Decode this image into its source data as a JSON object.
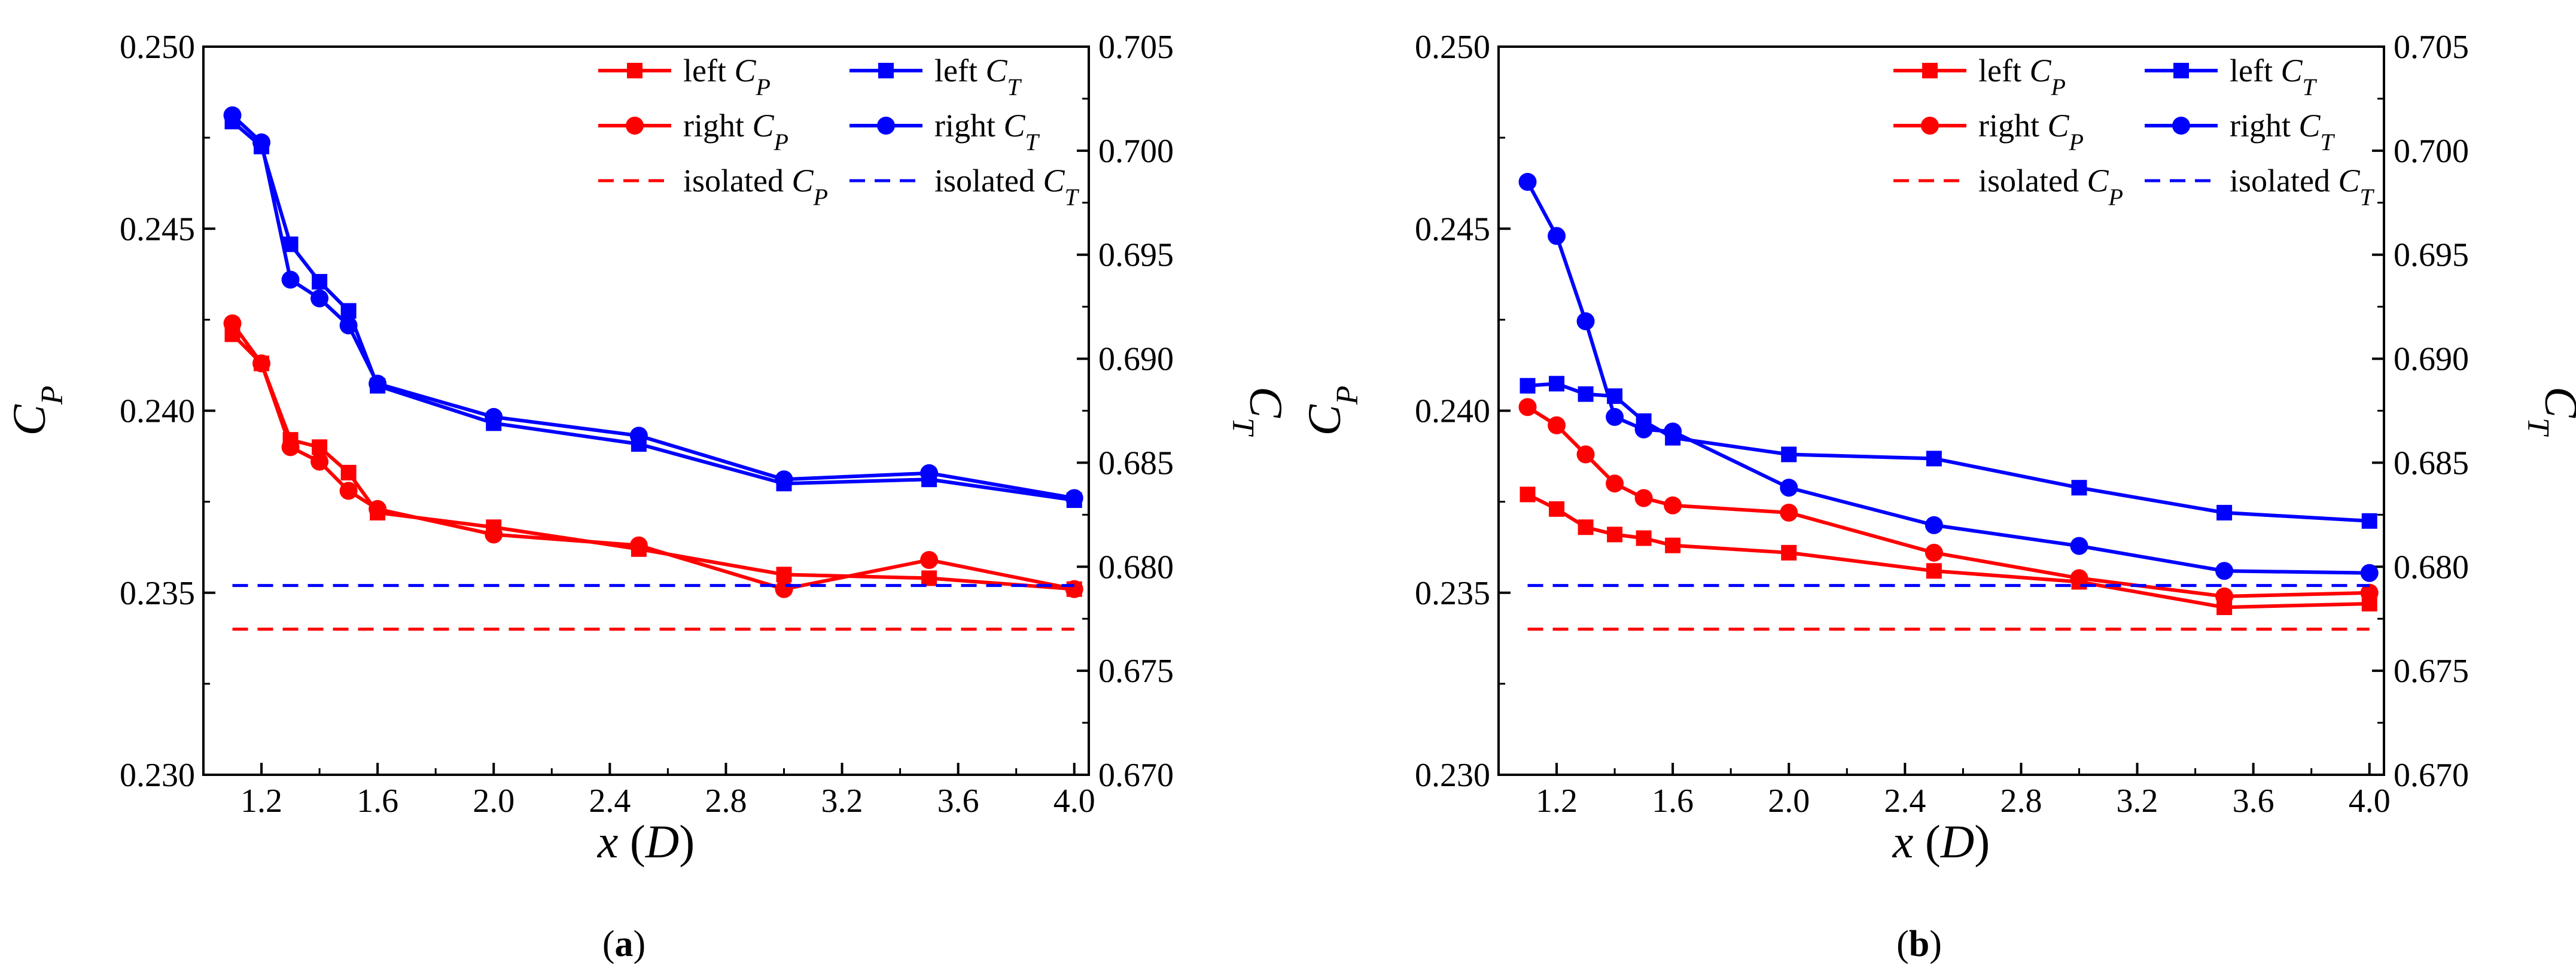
{
  "chart_data": [
    {
      "type": "line",
      "panel_label": "(a)",
      "xlabel": "x (D)",
      "ylabel_left": "C_P",
      "ylabel_right": "C_T",
      "xlim": [
        1.0,
        4.05
      ],
      "ylim_left": [
        0.23,
        0.25
      ],
      "ylim_right": [
        0.67,
        0.705
      ],
      "x_ticks": [
        "1.2",
        "1.6",
        "2.0",
        "2.4",
        "2.8",
        "3.2",
        "3.6",
        "4.0"
      ],
      "y_ticks_left": [
        "0.230",
        "0.235",
        "0.240",
        "0.245",
        "0.250"
      ],
      "y_ticks_right": [
        "0.670",
        "0.675",
        "0.680",
        "0.685",
        "0.690",
        "0.695",
        "0.700",
        "0.705"
      ],
      "x": [
        1.1,
        1.2,
        1.3,
        1.4,
        1.5,
        1.6,
        2.0,
        2.5,
        3.0,
        3.5,
        4.0
      ],
      "series": [
        {
          "name": "left C_P",
          "axis": "left",
          "color": "#ff0000",
          "marker": "square",
          "dashed": false,
          "values": [
            0.2421,
            0.2413,
            0.2392,
            0.239,
            0.2383,
            0.2372,
            0.2368,
            0.2362,
            0.2355,
            0.2354,
            0.2351
          ]
        },
        {
          "name": "right C_P",
          "axis": "left",
          "color": "#ff0000",
          "marker": "circle",
          "dashed": false,
          "values": [
            0.2424,
            0.2413,
            0.239,
            0.2386,
            0.2378,
            0.2373,
            0.2366,
            0.2363,
            0.2351,
            0.2359,
            0.2351
          ]
        },
        {
          "name": "left C_T",
          "axis": "right",
          "color": "#0000ff",
          "marker": "square",
          "dashed": false,
          "values": [
            0.7014,
            0.7002,
            0.6955,
            0.6937,
            0.6923,
            0.6887,
            0.6869,
            0.6859,
            0.684,
            0.6842,
            0.6832
          ]
        },
        {
          "name": "right C_T",
          "axis": "right",
          "color": "#0000ff",
          "marker": "circle",
          "dashed": false,
          "values": [
            0.7017,
            0.7004,
            0.6938,
            0.6929,
            0.6916,
            0.6888,
            0.6872,
            0.6863,
            0.6842,
            0.6845,
            0.6833
          ]
        },
        {
          "name": "isolated C_P",
          "axis": "left",
          "color": "#ff0000",
          "marker": "none",
          "dashed": true,
          "values": [
            0.234,
            0.234,
            0.234,
            0.234,
            0.234,
            0.234,
            0.234,
            0.234,
            0.234,
            0.234,
            0.234
          ]
        },
        {
          "name": "isolated C_T",
          "axis": "right",
          "color": "#0000ff",
          "marker": "none",
          "dashed": true,
          "values": [
            0.6791,
            0.6791,
            0.6791,
            0.6791,
            0.6791,
            0.6791,
            0.6791,
            0.6791,
            0.6791,
            0.6791,
            0.6791
          ]
        }
      ]
    },
    {
      "type": "line",
      "panel_label": "(b)",
      "xlabel": "x (D)",
      "ylabel_left": "C_P",
      "ylabel_right": "C_T",
      "xlim": [
        1.0,
        4.05
      ],
      "ylim_left": [
        0.23,
        0.25
      ],
      "ylim_right": [
        0.67,
        0.705
      ],
      "x_ticks": [
        "1.2",
        "1.6",
        "2.0",
        "2.4",
        "2.8",
        "3.2",
        "3.6",
        "4.0"
      ],
      "y_ticks_left": [
        "0.230",
        "0.235",
        "0.240",
        "0.245",
        "0.250"
      ],
      "y_ticks_right": [
        "0.670",
        "0.675",
        "0.680",
        "0.685",
        "0.690",
        "0.695",
        "0.700",
        "0.705"
      ],
      "x": [
        1.1,
        1.2,
        1.3,
        1.4,
        1.5,
        1.6,
        2.0,
        2.5,
        3.0,
        3.5,
        4.0
      ],
      "series": [
        {
          "name": "left C_P",
          "axis": "left",
          "color": "#ff0000",
          "marker": "square",
          "dashed": false,
          "values": [
            0.2377,
            0.2373,
            0.2368,
            0.2366,
            0.2365,
            0.2363,
            0.2361,
            0.2356,
            0.2353,
            0.2346,
            0.2347
          ]
        },
        {
          "name": "right C_P",
          "axis": "left",
          "color": "#ff0000",
          "marker": "circle",
          "dashed": false,
          "values": [
            0.2401,
            0.2396,
            0.2388,
            0.238,
            0.2376,
            0.2374,
            0.2372,
            0.2361,
            0.2354,
            0.2349,
            0.235
          ]
        },
        {
          "name": "left C_T",
          "axis": "right",
          "color": "#0000ff",
          "marker": "square",
          "dashed": false,
          "values": [
            0.6887,
            0.6888,
            0.6883,
            0.6882,
            0.687,
            0.6862,
            0.6854,
            0.6852,
            0.6838,
            0.6826,
            0.6822
          ]
        },
        {
          "name": "right C_T",
          "axis": "right",
          "color": "#0000ff",
          "marker": "circle",
          "dashed": false,
          "values": [
            0.6985,
            0.6959,
            0.6918,
            0.6872,
            0.6866,
            0.6865,
            0.6838,
            0.682,
            0.681,
            0.6798,
            0.6797
          ]
        },
        {
          "name": "isolated C_P",
          "axis": "left",
          "color": "#ff0000",
          "marker": "none",
          "dashed": true,
          "values": [
            0.234,
            0.234,
            0.234,
            0.234,
            0.234,
            0.234,
            0.234,
            0.234,
            0.234,
            0.234,
            0.234
          ]
        },
        {
          "name": "isolated C_T",
          "axis": "right",
          "color": "#0000ff",
          "marker": "none",
          "dashed": true,
          "values": [
            0.6791,
            0.6791,
            0.6791,
            0.6791,
            0.6791,
            0.6791,
            0.6791,
            0.6791,
            0.6791,
            0.6791,
            0.6791
          ]
        }
      ]
    }
  ]
}
